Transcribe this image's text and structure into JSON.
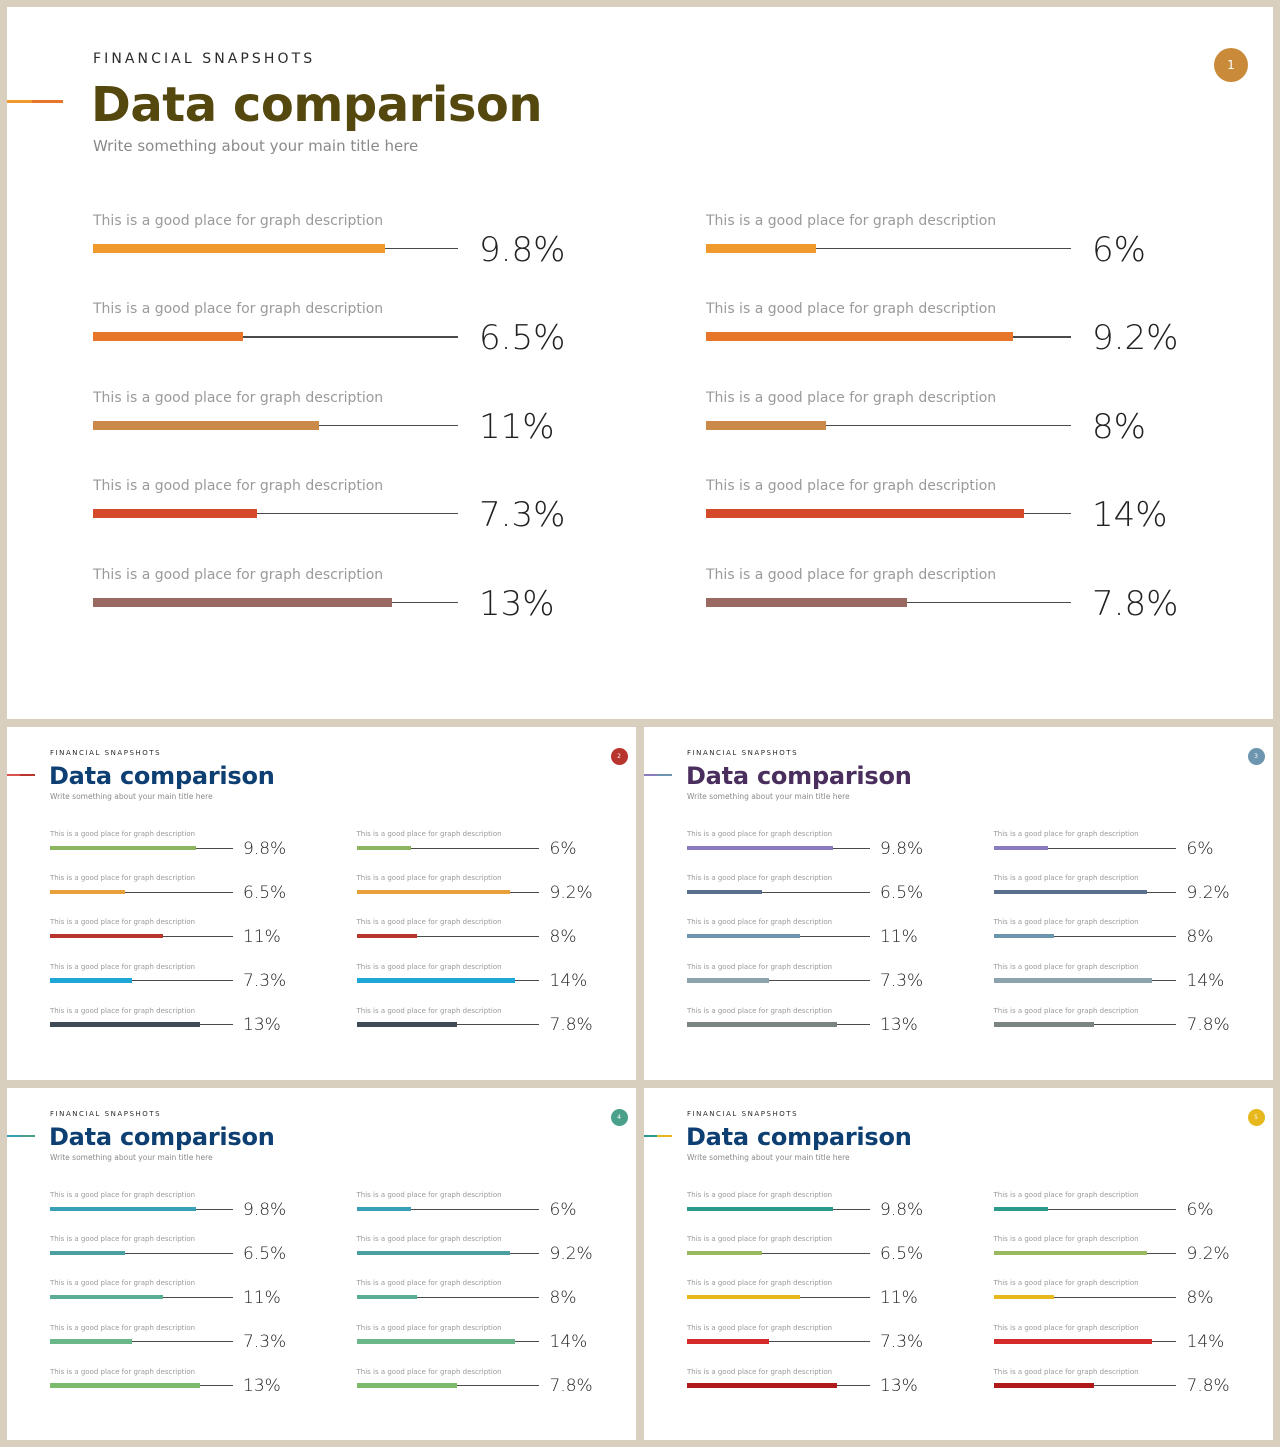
{
  "slides": [
    {
      "eyebrow": "FINANCIAL SNAPSHOTS",
      "title": "Data comparison",
      "subtitle": "Write something about your main title here",
      "page_number": "1",
      "colors": {
        "title": "#55480f",
        "badge": "#c98a3a",
        "accent": [
          "#f09a2e",
          "#e7752a"
        ],
        "bars": [
          "#f09a2e",
          "#e7752a",
          "#cc8a4a",
          "#d44a2a",
          "#9a6a62"
        ]
      },
      "left": [
        {
          "description": "This is a good place for graph description",
          "value": "9.8%",
          "fill": 0.8
        },
        {
          "description": "This is a good place for graph description",
          "value": "6.5%",
          "fill": 0.41
        },
        {
          "description": "This is a good place for graph description",
          "value": "11%",
          "fill": 0.62
        },
        {
          "description": "This is a good place for graph description",
          "value": "7.3%",
          "fill": 0.45
        },
        {
          "description": "This is a good place for graph description",
          "value": "13%",
          "fill": 0.82
        }
      ],
      "right": [
        {
          "description": "This is a good place for graph description",
          "value": "6%",
          "fill": 0.3
        },
        {
          "description": "This is a good place for graph description",
          "value": "9.2%",
          "fill": 0.84
        },
        {
          "description": "This is a good place for graph description",
          "value": "8%",
          "fill": 0.33
        },
        {
          "description": "This is a good place for graph description",
          "value": "14%",
          "fill": 0.87
        },
        {
          "description": "This is a good place for graph description",
          "value": "7.8%",
          "fill": 0.55
        }
      ]
    },
    {
      "eyebrow": "FINANCIAL SNAPSHOTS",
      "title": "Data comparison",
      "subtitle": "Write something about your main title here",
      "page_number": "2",
      "colors": {
        "title": "#0e3f73",
        "badge": "#b8352e",
        "accent": [
          "#d9534f",
          "#b8352e"
        ],
        "bars": [
          "#8db560",
          "#e7a03a",
          "#b8352e",
          "#1ea6d6",
          "#3f4a55"
        ]
      },
      "left": [
        {
          "description": "This is a good place for graph description",
          "value": "9.8%",
          "fill": 0.8
        },
        {
          "description": "This is a good place for graph description",
          "value": "6.5%",
          "fill": 0.41
        },
        {
          "description": "This is a good place for graph description",
          "value": "11%",
          "fill": 0.62
        },
        {
          "description": "This is a good place for graph description",
          "value": "7.3%",
          "fill": 0.45
        },
        {
          "description": "This is a good place for graph description",
          "value": "13%",
          "fill": 0.82
        }
      ],
      "right": [
        {
          "description": "This is a good place for graph description",
          "value": "6%",
          "fill": 0.3
        },
        {
          "description": "This is a good place for graph description",
          "value": "9.2%",
          "fill": 0.84
        },
        {
          "description": "This is a good place for graph description",
          "value": "8%",
          "fill": 0.33
        },
        {
          "description": "This is a good place for graph description",
          "value": "14%",
          "fill": 0.87
        },
        {
          "description": "This is a good place for graph description",
          "value": "7.8%",
          "fill": 0.55
        }
      ]
    },
    {
      "eyebrow": "FINANCIAL SNAPSHOTS",
      "title": "Data comparison",
      "subtitle": "Write something about your main title here",
      "page_number": "3",
      "colors": {
        "title": "#4a2f5e",
        "badge": "#6d95b0",
        "accent": [
          "#8a7bc0",
          "#6d95b0"
        ],
        "bars": [
          "#8a7bc0",
          "#5a6e8e",
          "#6d95b0",
          "#8aa3ad",
          "#7a8480"
        ]
      },
      "left": [
        {
          "description": "This is a good place for graph description",
          "value": "9.8%",
          "fill": 0.8
        },
        {
          "description": "This is a good place for graph description",
          "value": "6.5%",
          "fill": 0.41
        },
        {
          "description": "This is a good place for graph description",
          "value": "11%",
          "fill": 0.62
        },
        {
          "description": "This is a good place for graph description",
          "value": "7.3%",
          "fill": 0.45
        },
        {
          "description": "This is a good place for graph description",
          "value": "13%",
          "fill": 0.82
        }
      ],
      "right": [
        {
          "description": "This is a good place for graph description",
          "value": "6%",
          "fill": 0.3
        },
        {
          "description": "This is a good place for graph description",
          "value": "9.2%",
          "fill": 0.84
        },
        {
          "description": "This is a good place for graph description",
          "value": "8%",
          "fill": 0.33
        },
        {
          "description": "This is a good place for graph description",
          "value": "14%",
          "fill": 0.87
        },
        {
          "description": "This is a good place for graph description",
          "value": "7.8%",
          "fill": 0.55
        }
      ]
    },
    {
      "eyebrow": "FINANCIAL SNAPSHOTS",
      "title": "Data comparison",
      "subtitle": "Write something about your main title here",
      "page_number": "4",
      "colors": {
        "title": "#0e3f73",
        "badge": "#4aa08a",
        "accent": [
          "#3aa0b8",
          "#4aa08a"
        ],
        "bars": [
          "#3aa0b8",
          "#4aa0a0",
          "#5aae98",
          "#6ab88a",
          "#7cbb6a"
        ]
      },
      "left": [
        {
          "description": "This is a good place for graph description",
          "value": "9.8%",
          "fill": 0.8
        },
        {
          "description": "This is a good place for graph description",
          "value": "6.5%",
          "fill": 0.41
        },
        {
          "description": "This is a good place for graph description",
          "value": "11%",
          "fill": 0.62
        },
        {
          "description": "This is a good place for graph description",
          "value": "7.3%",
          "fill": 0.45
        },
        {
          "description": "This is a good place for graph description",
          "value": "13%",
          "fill": 0.82
        }
      ],
      "right": [
        {
          "description": "This is a good place for graph description",
          "value": "6%",
          "fill": 0.3
        },
        {
          "description": "This is a good place for graph description",
          "value": "9.2%",
          "fill": 0.84
        },
        {
          "description": "This is a good place for graph description",
          "value": "8%",
          "fill": 0.33
        },
        {
          "description": "This is a good place for graph description",
          "value": "14%",
          "fill": 0.87
        },
        {
          "description": "This is a good place for graph description",
          "value": "7.8%",
          "fill": 0.55
        }
      ]
    },
    {
      "eyebrow": "FINANCIAL SNAPSHOTS",
      "title": "Data comparison",
      "subtitle": "Write something about your main title here",
      "page_number": "5",
      "colors": {
        "title": "#0e3f73",
        "badge": "#e6b81c",
        "accent": [
          "#2a9a8a",
          "#e6b81c"
        ],
        "bars": [
          "#2a9a8a",
          "#9ab860",
          "#e6b81c",
          "#d42a2a",
          "#b01a1a"
        ]
      },
      "left": [
        {
          "description": "This is a good place for graph description",
          "value": "9.8%",
          "fill": 0.8
        },
        {
          "description": "This is a good place for graph description",
          "value": "6.5%",
          "fill": 0.41
        },
        {
          "description": "This is a good place for graph description",
          "value": "11%",
          "fill": 0.62
        },
        {
          "description": "This is a good place for graph description",
          "value": "7.3%",
          "fill": 0.45
        },
        {
          "description": "This is a good place for graph description",
          "value": "13%",
          "fill": 0.82
        }
      ],
      "right": [
        {
          "description": "This is a good place for graph description",
          "value": "6%",
          "fill": 0.3
        },
        {
          "description": "This is a good place for graph description",
          "value": "9.2%",
          "fill": 0.84
        },
        {
          "description": "This is a good place for graph description",
          "value": "8%",
          "fill": 0.33
        },
        {
          "description": "This is a good place for graph description",
          "value": "14%",
          "fill": 0.87
        },
        {
          "description": "This is a good place for graph description",
          "value": "7.8%",
          "fill": 0.55
        }
      ]
    }
  ]
}
